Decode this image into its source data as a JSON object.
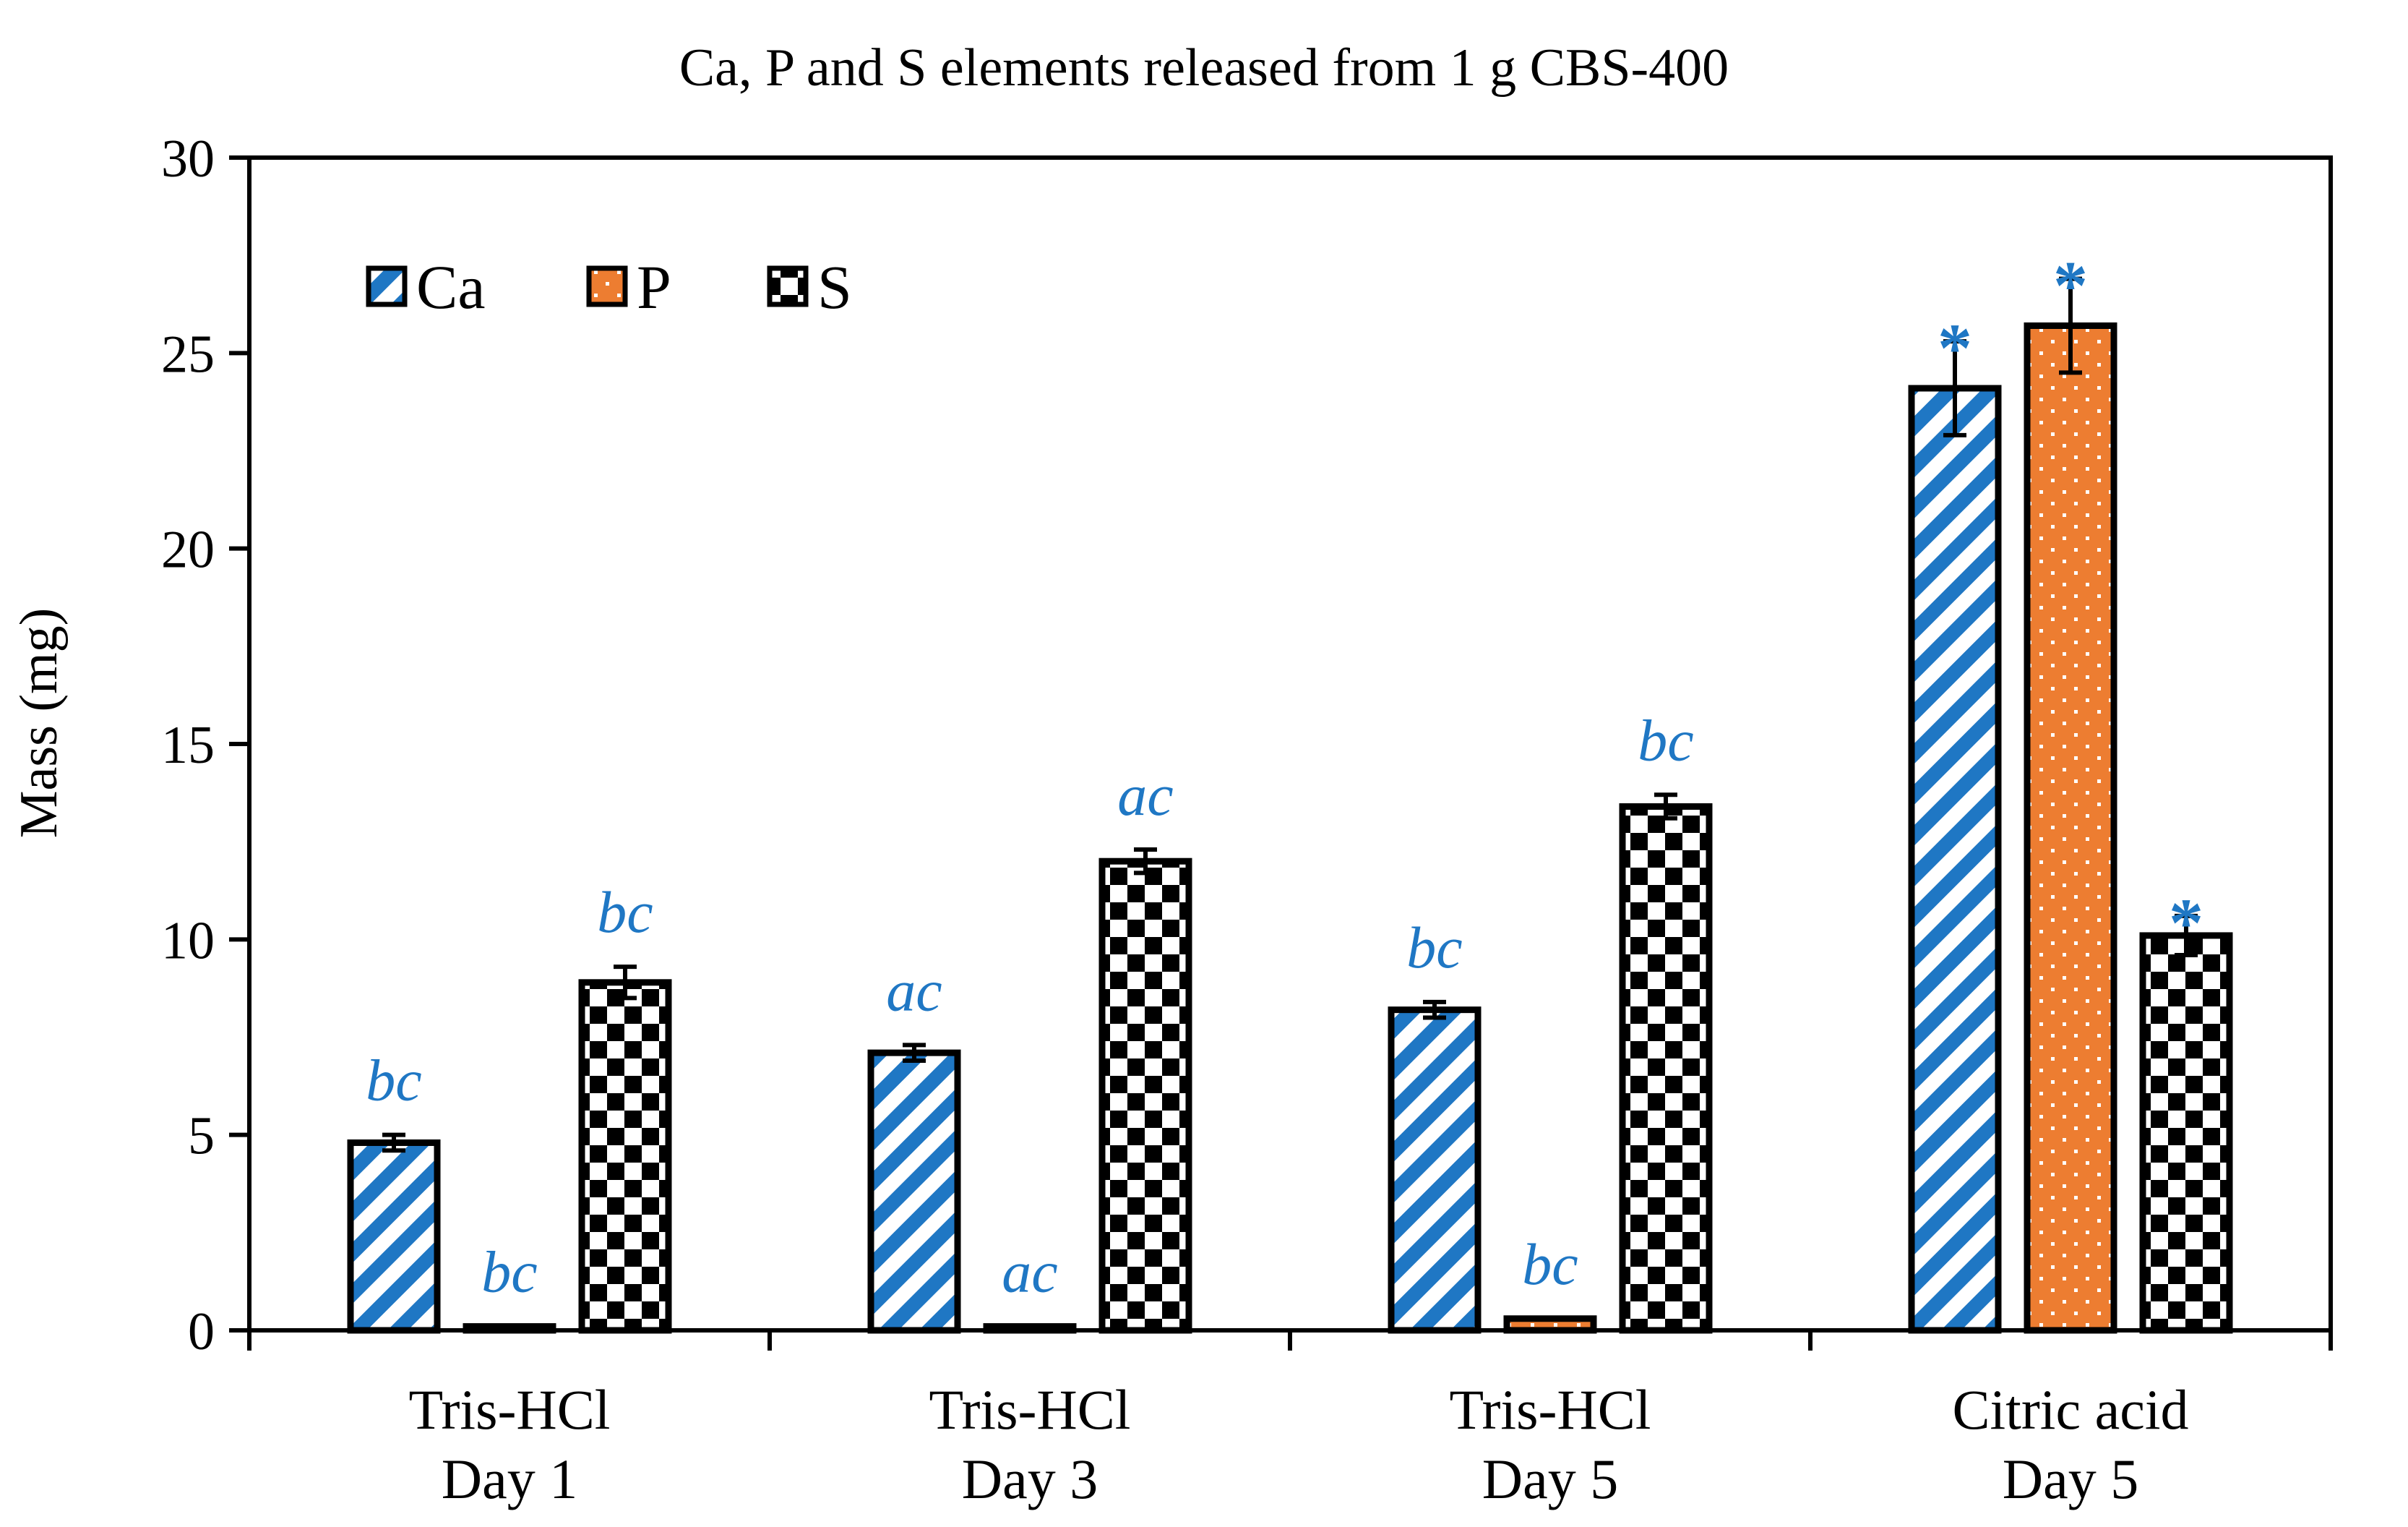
{
  "chart_data": {
    "type": "bar",
    "title": "Ca, P and S elements released from 1 g CBS-400",
    "ylabel": "Mass (mg)",
    "xlabel": "",
    "ylim": [
      0,
      30
    ],
    "yticks": [
      0,
      5,
      10,
      15,
      20,
      25,
      30
    ],
    "grid": false,
    "legend_position": "top-left",
    "categories": [
      [
        "Tris-HCl",
        "Day 1"
      ],
      [
        "Tris-HCl",
        "Day 3"
      ],
      [
        "Tris-HCl",
        "Day 5"
      ],
      [
        "Citric acid",
        "Day 5"
      ]
    ],
    "series": [
      {
        "name": "Ca",
        "pattern": "blue-diagonal-stripes",
        "color": "#1f77c4",
        "values": [
          4.8,
          7.1,
          8.2,
          24.1
        ],
        "errors": [
          0.2,
          0.2,
          0.2,
          1.2
        ],
        "labels": [
          "bc",
          "ac",
          "bc",
          "*"
        ]
      },
      {
        "name": "P",
        "pattern": "orange-dotted",
        "color": "#ed7d31",
        "values": [
          0.1,
          0.1,
          0.3,
          25.7
        ],
        "errors": [
          0.05,
          0.05,
          0.05,
          1.2
        ],
        "labels": [
          "bc",
          "ac",
          "bc",
          "*"
        ]
      },
      {
        "name": "S",
        "pattern": "black-checkerboard",
        "color": "#000000",
        "values": [
          8.9,
          12.0,
          13.4,
          10.1
        ],
        "errors": [
          0.4,
          0.3,
          0.3,
          0.5
        ],
        "labels": [
          "bc",
          "ac",
          "bc",
          "*"
        ]
      }
    ],
    "label_color": "#1f77c4"
  }
}
